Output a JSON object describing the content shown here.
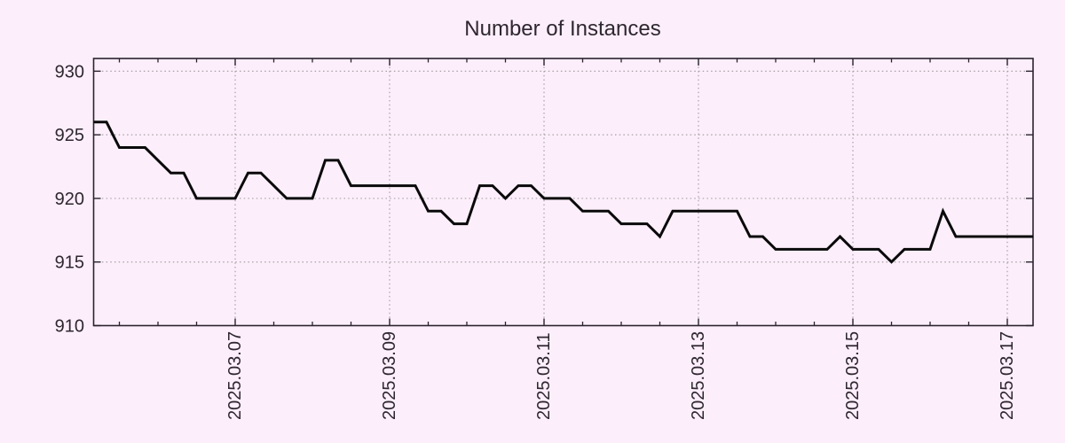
{
  "chart_data": {
    "type": "line",
    "title": "Number of Instances",
    "series": [
      {
        "name": "Number of Instances",
        "values": [
          926,
          926,
          924,
          924,
          924,
          923,
          922,
          922,
          920,
          920,
          920,
          920,
          922,
          922,
          921,
          920,
          920,
          920,
          923,
          923,
          921,
          921,
          921,
          921,
          921,
          921,
          919,
          919,
          918,
          918,
          921,
          921,
          920,
          921,
          921,
          920,
          920,
          920,
          919,
          919,
          919,
          918,
          918,
          918,
          917,
          919,
          919,
          919,
          919,
          919,
          919,
          917,
          917,
          916,
          916,
          916,
          916,
          916,
          917,
          916,
          916,
          916,
          915,
          916,
          916,
          916,
          919,
          917,
          917,
          917,
          917,
          917,
          917,
          917
        ]
      }
    ],
    "x_start": "2025-03-05 04:00",
    "x_step_hours": 4,
    "x_tick_labels": [
      "2025.03.07",
      "2025.03.09",
      "2025.03.11",
      "2025.03.13",
      "2025.03.15",
      "2025.03.17"
    ],
    "x_tick_indices": [
      11,
      23,
      35,
      47,
      59,
      71
    ],
    "x_minor_tick_start": 2,
    "x_minor_tick_step": 3,
    "y_tick_labels": [
      "910",
      "915",
      "920",
      "925",
      "930"
    ],
    "y_tick_values": [
      910,
      915,
      920,
      925,
      930
    ],
    "ylim": [
      910,
      931
    ],
    "grid": true,
    "legend_position": "none",
    "colors": {
      "background": "#fceffb",
      "line": "#0a0a0a",
      "grid": "#a7a0a7",
      "axis": "#2b2230",
      "text": "#2e2630"
    }
  }
}
